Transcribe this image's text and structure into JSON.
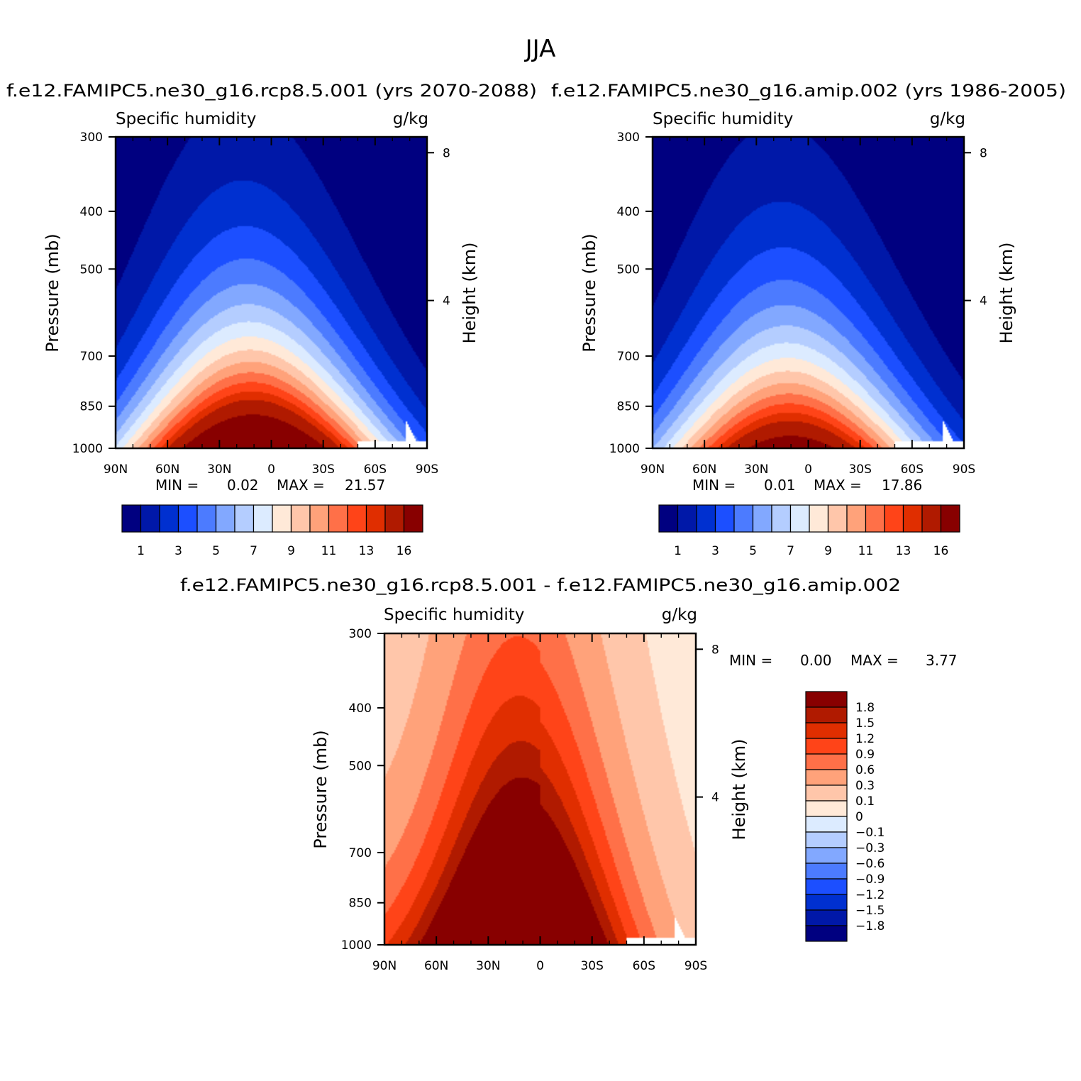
{
  "figure": {
    "season": "JJA"
  },
  "chart_data": [
    {
      "type": "heatmap",
      "title": "f.e12.FAMIPC5.ne30_g16.rcp8.5.001 (yrs 2070-2088)",
      "subtitle_left": "Specific humidity",
      "subtitle_right": "g/kg",
      "xlabel": "",
      "ylabel": "Pressure (mb)",
      "ylabel_right": "Height (km)",
      "xticks": [
        "90N",
        "60N",
        "30N",
        "0",
        "30S",
        "60S",
        "90S"
      ],
      "xlim": [
        90,
        -90
      ],
      "yticks": [
        300,
        400,
        500,
        700,
        850,
        1000
      ],
      "ylim": [
        1000,
        300
      ],
      "yscale": "log",
      "yticks_right": [
        8,
        4
      ],
      "min_label": "MIN =",
      "min_value": "0.02",
      "max_label": "MAX =",
      "max_value": "21.57",
      "levels": [
        1,
        2,
        3,
        4,
        5,
        6,
        7,
        8,
        9,
        10,
        11,
        12,
        13,
        14,
        16
      ],
      "level_labels": [
        "1",
        "3",
        "5",
        "7",
        "9",
        "11",
        "13",
        "16"
      ],
      "colors": [
        "#000080",
        "#0018A8",
        "#0030D0",
        "#1C4FFF",
        "#4C7BFF",
        "#82A8FF",
        "#B4CDFF",
        "#DCEBFF",
        "#FFE9D8",
        "#FFC6AA",
        "#FFA27A",
        "#FF7048",
        "#FF4418",
        "#E02E00",
        "#B01A00",
        "#880000"
      ],
      "peak_value": 21.57,
      "min_value_num": 0.02
    },
    {
      "type": "heatmap",
      "title": "f.e12.FAMIPC5.ne30_g16.amip.002 (yrs 1986-2005)",
      "subtitle_left": "Specific humidity",
      "subtitle_right": "g/kg",
      "xlabel": "",
      "ylabel": "Pressure (mb)",
      "ylabel_right": "Height (km)",
      "xticks": [
        "90N",
        "60N",
        "30N",
        "0",
        "30S",
        "60S",
        "90S"
      ],
      "xlim": [
        90,
        -90
      ],
      "yticks": [
        300,
        400,
        500,
        700,
        850,
        1000
      ],
      "ylim": [
        1000,
        300
      ],
      "yscale": "log",
      "yticks_right": [
        8,
        4
      ],
      "min_label": "MIN =",
      "min_value": "0.01",
      "max_label": "MAX =",
      "max_value": "17.86",
      "levels": [
        1,
        2,
        3,
        4,
        5,
        6,
        7,
        8,
        9,
        10,
        11,
        12,
        13,
        14,
        16
      ],
      "level_labels": [
        "1",
        "3",
        "5",
        "7",
        "9",
        "11",
        "13",
        "16"
      ],
      "colors": [
        "#000080",
        "#0018A8",
        "#0030D0",
        "#1C4FFF",
        "#4C7BFF",
        "#82A8FF",
        "#B4CDFF",
        "#DCEBFF",
        "#FFE9D8",
        "#FFC6AA",
        "#FFA27A",
        "#FF7048",
        "#FF4418",
        "#E02E00",
        "#B01A00",
        "#880000"
      ],
      "peak_value": 17.86,
      "min_value_num": 0.01
    },
    {
      "type": "heatmap",
      "title": "f.e12.FAMIPC5.ne30_g16.rcp8.5.001 - f.e12.FAMIPC5.ne30_g16.amip.002",
      "subtitle_left": "Specific humidity",
      "subtitle_right": "g/kg",
      "xlabel": "",
      "ylabel": "Pressure (mb)",
      "ylabel_right": "Height (km)",
      "xticks": [
        "90N",
        "60N",
        "30N",
        "0",
        "30S",
        "60S",
        "90S"
      ],
      "xlim": [
        90,
        -90
      ],
      "yticks": [
        300,
        400,
        500,
        700,
        850,
        1000
      ],
      "ylim": [
        1000,
        300
      ],
      "yscale": "log",
      "yticks_right": [
        8,
        4
      ],
      "min_label": "MIN =",
      "min_value": "0.00",
      "max_label": "MAX =",
      "max_value": "3.77",
      "levels": [
        -1.8,
        -1.5,
        -1.2,
        -0.9,
        -0.6,
        -0.3,
        -0.1,
        0,
        0.1,
        0.3,
        0.6,
        0.9,
        1.2,
        1.5,
        1.8
      ],
      "level_labels": [
        "1.8",
        "1.5",
        "1.2",
        "0.9",
        "0.6",
        "0.3",
        "0.1",
        "0",
        "−0.1",
        "−0.3",
        "−0.6",
        "−0.9",
        "−1.2",
        "−1.5",
        "−1.8"
      ],
      "colors": [
        "#000080",
        "#0018A8",
        "#0030D0",
        "#1C4FFF",
        "#4C7BFF",
        "#82A8FF",
        "#B4CDFF",
        "#DCEBFF",
        "#FFE9D8",
        "#FFC6AA",
        "#FFA27A",
        "#FF7048",
        "#FF4418",
        "#E02E00",
        "#B01A00",
        "#880000"
      ],
      "peak_value": 3.77,
      "min_value_num": 0.0
    }
  ]
}
